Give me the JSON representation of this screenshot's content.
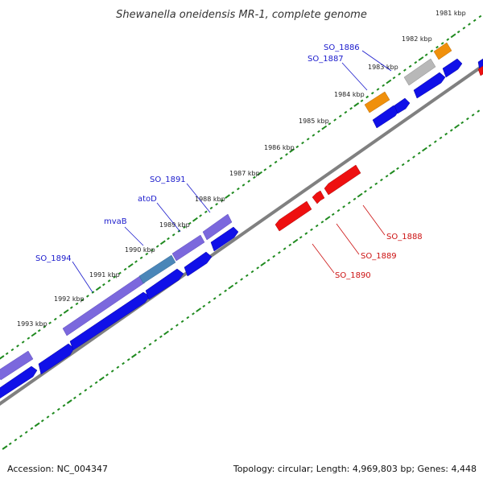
{
  "title": "Shewanella oneidensis MR-1, complete genome",
  "footer": {
    "accession": "Accession: NC_004347",
    "summary": "Topology: circular; Length: 4,969,803 bp; Genes: 4,448"
  },
  "colors": {
    "backbone": "#808080",
    "tick": "#1f8a1f",
    "gene_blue": "#1010e8",
    "gene_purple": "#7b68dd",
    "gene_teal": "#4a86b8",
    "gene_gray": "#b8b8b8",
    "gene_orange": "#f0900c",
    "gene_red": "#ee1010",
    "label_forward": "#1a1acc",
    "label_reverse": "#cc1111"
  },
  "kbp_labels": [
    "1981 kbp",
    "1982 kbp",
    "1983 kbp",
    "1984 kbp",
    "1985 kbp",
    "1986 kbp",
    "1987 kbp",
    "1988 kbp",
    "1989 kbp",
    "1990 kbp",
    "1991 kbp",
    "1992 kbp",
    "1993 kbp"
  ],
  "gene_labels": [
    {
      "text": "SO_1886",
      "strand": "forward"
    },
    {
      "text": "SO_1887",
      "strand": "forward"
    },
    {
      "text": "SO_1891",
      "strand": "forward"
    },
    {
      "text": "atoD",
      "strand": "forward"
    },
    {
      "text": "mvaB",
      "strand": "forward"
    },
    {
      "text": "SO_1894",
      "strand": "forward"
    },
    {
      "text": "SO_1888",
      "strand": "reverse"
    },
    {
      "text": "SO_1889",
      "strand": "reverse"
    },
    {
      "text": "SO_1890",
      "strand": "reverse"
    }
  ]
}
